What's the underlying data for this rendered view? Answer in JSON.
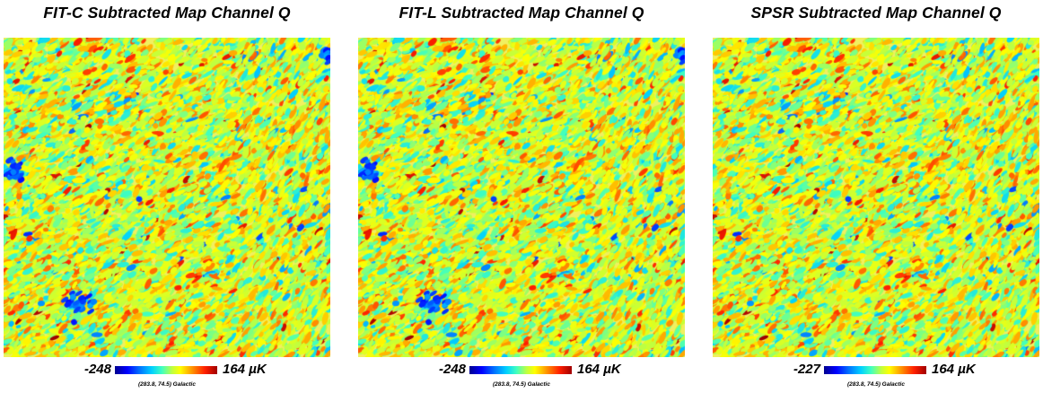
{
  "panels": [
    {
      "title": "FIT-C Subtracted Map Channel Q",
      "colorbar_min": "-248",
      "colorbar_max": "164 µK",
      "coordinates": "(283.8, 74.5) Galactic",
      "has_blue_blobs": true
    },
    {
      "title": "FIT-L Subtracted Map Channel Q",
      "colorbar_min": "-248",
      "colorbar_max": "164 µK",
      "coordinates": "(283.8, 74.5) Galactic",
      "has_blue_blobs": true
    },
    {
      "title": "SPSR Subtracted Map Channel Q",
      "colorbar_min": "-227",
      "colorbar_max": "164 µK",
      "coordinates": "(283.8, 74.5) Galactic",
      "has_blue_blobs": false
    }
  ],
  "colormap": [
    "#00008f",
    "#0000ff",
    "#0070ff",
    "#00d0ff",
    "#40ffc0",
    "#c0ff40",
    "#ffff00",
    "#ff9000",
    "#ff2000",
    "#a00000"
  ]
}
